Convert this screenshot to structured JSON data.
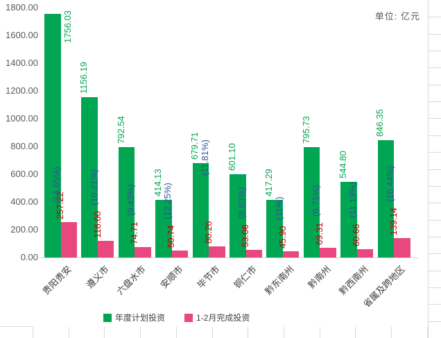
{
  "unit_label": "单位: 亿元",
  "chart_data": {
    "type": "bar",
    "title": "",
    "unit": "亿元",
    "categories": [
      "贵阳贵安",
      "遵义市",
      "六盘水市",
      "安顺市",
      "毕节市",
      "铜仁市",
      "黔东南州",
      "黔南州",
      "黔西南州",
      "省属及跨地区"
    ],
    "series": [
      {
        "name": "年度计划投资",
        "color": "#00A651",
        "label_color": "#00A651",
        "values": [
          1756.03,
          1156.19,
          792.54,
          414.13,
          679.71,
          601.1,
          417.29,
          795.73,
          544.8,
          846.35
        ]
      },
      {
        "name": "1-2月完成投资",
        "color": "#E8487F",
        "label_color": "#C00000",
        "values": [
          257.22,
          118.0,
          74.71,
          50.74,
          80.26,
          53.06,
          45.9,
          69.31,
          60.66,
          139.14
        ],
        "pct_labels": [
          "(14.65%)",
          "(10.21%)",
          "(9.43%)",
          "(12.25%)",
          "(11.81%)",
          "(8.83%)",
          "(11%)",
          "(8.71%)",
          "(11.13%)",
          "(16.44%)"
        ],
        "pct_color": "#2F5597"
      }
    ],
    "ylim": [
      0,
      1800
    ],
    "ytick_step": 200,
    "ytick_format": "two_decimals",
    "y_axis_text_color": "#595959",
    "gridlines": false,
    "legend_position": "bottom"
  }
}
